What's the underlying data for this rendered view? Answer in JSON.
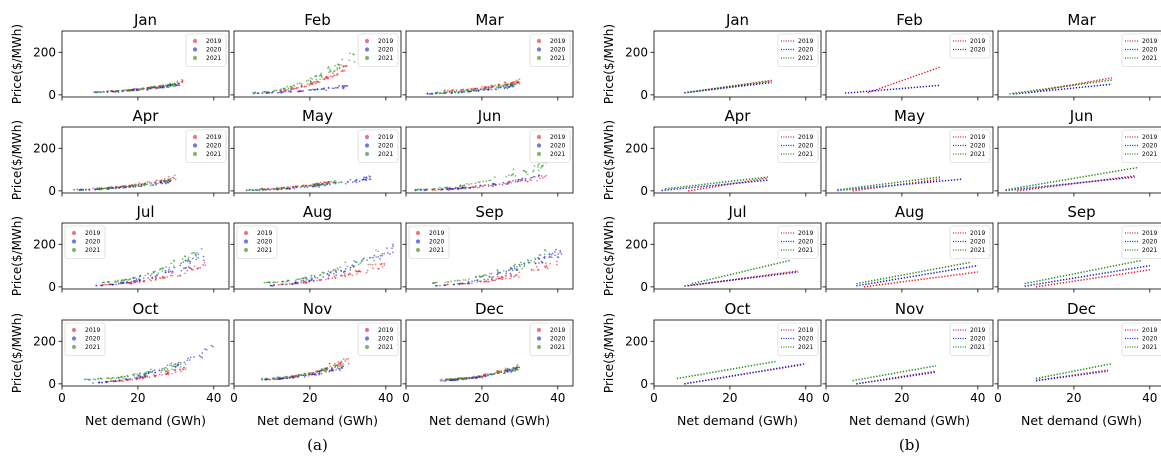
{
  "panels": [
    {
      "label": "(a)",
      "kind": "scatter"
    },
    {
      "label": "(b)",
      "kind": "line"
    }
  ],
  "axes": {
    "xlabel": "Net demand (GWh)",
    "ylabel": "Price($/MWh)",
    "xlim": [
      0,
      44
    ],
    "ylim": [
      -10,
      300
    ],
    "xticks": [
      0,
      20,
      40
    ],
    "yticks": [
      0,
      200
    ]
  },
  "legend": [
    "2019",
    "2020",
    "2021"
  ],
  "colors": {
    "2019": "#e8191f",
    "2020": "#1c1ccf",
    "2021": "#1d8a1d"
  },
  "months": [
    "Jan",
    "Feb",
    "Mar",
    "Apr",
    "May",
    "Jun",
    "Jul",
    "Aug",
    "Sep",
    "Oct",
    "Nov",
    "Dec"
  ],
  "chart_data": [
    {
      "type": "scatter",
      "panel": "(a)",
      "subplots": [
        {
          "month": "Jan",
          "series": [
            {
              "name": "2019",
              "x": [
                12,
                32
              ],
              "y": [
                18,
                75
              ]
            },
            {
              "name": "2020",
              "x": [
                8,
                31
              ],
              "y": [
                12,
                62
              ]
            },
            {
              "name": "2021",
              "x": [
                9,
                31
              ],
              "y": [
                14,
                70
              ]
            }
          ]
        },
        {
          "month": "Feb",
          "series": [
            {
              "name": "2019",
              "x": [
                12,
                30
              ],
              "y": [
                22,
                175
              ]
            },
            {
              "name": "2020",
              "x": [
                5,
                30
              ],
              "y": [
                8,
                55
              ]
            },
            {
              "name": "2021",
              "x": [
                5,
                32
              ],
              "y": [
                10,
                240
              ]
            }
          ]
        },
        {
          "month": "Mar",
          "series": [
            {
              "name": "2019",
              "x": [
                10,
                30
              ],
              "y": [
                20,
                80
              ]
            },
            {
              "name": "2020",
              "x": [
                5,
                29
              ],
              "y": [
                5,
                55
              ]
            },
            {
              "name": "2021",
              "x": [
                5,
                30
              ],
              "y": [
                8,
                75
              ]
            }
          ]
        },
        {
          "month": "Apr",
          "series": [
            {
              "name": "2019",
              "x": [
                8,
                30
              ],
              "y": [
                12,
                80
              ]
            },
            {
              "name": "2020",
              "x": [
                3,
                29
              ],
              "y": [
                4,
                60
              ]
            },
            {
              "name": "2021",
              "x": [
                3,
                29
              ],
              "y": [
                6,
                65
              ]
            }
          ]
        },
        {
          "month": "May",
          "series": [
            {
              "name": "2019",
              "x": [
                7,
                27
              ],
              "y": [
                10,
                60
              ]
            },
            {
              "name": "2020",
              "x": [
                3,
                36
              ],
              "y": [
                2,
                80
              ]
            },
            {
              "name": "2021",
              "x": [
                3,
                28
              ],
              "y": [
                4,
                60
              ]
            }
          ]
        },
        {
          "month": "Jun",
          "series": [
            {
              "name": "2019",
              "x": [
                5,
                37
              ],
              "y": [
                5,
                90
              ]
            },
            {
              "name": "2020",
              "x": [
                2,
                36
              ],
              "y": [
                2,
                90
              ]
            },
            {
              "name": "2021",
              "x": [
                2,
                37
              ],
              "y": [
                5,
                170
              ]
            }
          ]
        },
        {
          "month": "Jul",
          "series": [
            {
              "name": "2019",
              "x": [
                10,
                38
              ],
              "y": [
                10,
                130
              ]
            },
            {
              "name": "2020",
              "x": [
                8,
                38
              ],
              "y": [
                5,
                200
              ]
            },
            {
              "name": "2021",
              "x": [
                10,
                37
              ],
              "y": [
                20,
                230
              ]
            }
          ]
        },
        {
          "month": "Aug",
          "series": [
            {
              "name": "2019",
              "x": [
                10,
                40
              ],
              "y": [
                10,
                140
              ]
            },
            {
              "name": "2020",
              "x": [
                8,
                42
              ],
              "y": [
                5,
                240
              ]
            },
            {
              "name": "2021",
              "x": [
                8,
                38
              ],
              "y": [
                20,
                200
              ]
            }
          ]
        },
        {
          "month": "Sep",
          "series": [
            {
              "name": "2019",
              "x": [
                10,
                40
              ],
              "y": [
                10,
                150
              ]
            },
            {
              "name": "2020",
              "x": [
                7,
                41
              ],
              "y": [
                5,
                230
              ]
            },
            {
              "name": "2021",
              "x": [
                7,
                39
              ],
              "y": [
                20,
                220
              ]
            }
          ]
        },
        {
          "month": "Oct",
          "series": [
            {
              "name": "2019",
              "x": [
                10,
                33
              ],
              "y": [
                10,
                100
              ]
            },
            {
              "name": "2020",
              "x": [
                8,
                40
              ],
              "y": [
                5,
                230
              ]
            },
            {
              "name": "2021",
              "x": [
                6,
                32
              ],
              "y": [
                20,
                120
              ]
            }
          ]
        },
        {
          "month": "Nov",
          "series": [
            {
              "name": "2019",
              "x": [
                8,
                31
              ],
              "y": [
                20,
                150
              ]
            },
            {
              "name": "2020",
              "x": [
                7,
                29
              ],
              "y": [
                20,
                100
              ]
            },
            {
              "name": "2021",
              "x": [
                7,
                30
              ],
              "y": [
                25,
                120
              ]
            }
          ]
        },
        {
          "month": "Dec",
          "series": [
            {
              "name": "2019",
              "x": [
                10,
                30
              ],
              "y": [
                20,
                100
              ]
            },
            {
              "name": "2020",
              "x": [
                9,
                29
              ],
              "y": [
                15,
                90
              ]
            },
            {
              "name": "2021",
              "x": [
                9,
                30
              ],
              "y": [
                20,
                100
              ]
            }
          ]
        }
      ]
    },
    {
      "type": "line",
      "panel": "(b)",
      "subplots": [
        {
          "month": "Jan",
          "series": [
            {
              "name": "2019",
              "x": [
                8,
                31
              ],
              "y": [
                10,
                68
              ]
            },
            {
              "name": "2020",
              "x": [
                8,
                31
              ],
              "y": [
                10,
                58
              ]
            },
            {
              "name": "2021",
              "x": [
                9,
                31
              ],
              "y": [
                12,
                64
              ]
            }
          ]
        },
        {
          "month": "Feb",
          "series": [
            {
              "name": "2019",
              "x": [
                11,
                30
              ],
              "y": [
                10,
                130
              ]
            },
            {
              "name": "2020",
              "x": [
                5,
                30
              ],
              "y": [
                8,
                45
              ]
            }
          ]
        },
        {
          "month": "Mar",
          "series": [
            {
              "name": "2019",
              "x": [
                8,
                30
              ],
              "y": [
                10,
                80
              ]
            },
            {
              "name": "2020",
              "x": [
                4,
                30
              ],
              "y": [
                4,
                50
              ]
            },
            {
              "name": "2021",
              "x": [
                3,
                30
              ],
              "y": [
                5,
                70
              ]
            }
          ]
        },
        {
          "month": "Apr",
          "series": [
            {
              "name": "2019",
              "x": [
                9,
                30
              ],
              "y": [
                0,
                60
              ]
            },
            {
              "name": "2020",
              "x": [
                2,
                30
              ],
              "y": [
                2,
                50
              ]
            },
            {
              "name": "2021",
              "x": [
                3,
                30
              ],
              "y": [
                10,
                65
              ]
            }
          ]
        },
        {
          "month": "May",
          "series": [
            {
              "name": "2019",
              "x": [
                7,
                30
              ],
              "y": [
                0,
                55
              ]
            },
            {
              "name": "2020",
              "x": [
                3,
                36
              ],
              "y": [
                2,
                55
              ]
            },
            {
              "name": "2021",
              "x": [
                3,
                30
              ],
              "y": [
                5,
                65
              ]
            }
          ]
        },
        {
          "month": "Jun",
          "series": [
            {
              "name": "2019",
              "x": [
                5,
                36
              ],
              "y": [
                0,
                70
              ]
            },
            {
              "name": "2020",
              "x": [
                2,
                36
              ],
              "y": [
                2,
                65
              ]
            },
            {
              "name": "2021",
              "x": [
                2,
                37
              ],
              "y": [
                5,
                110
              ]
            }
          ]
        },
        {
          "month": "Jul",
          "series": [
            {
              "name": "2019",
              "x": [
                9,
                38
              ],
              "y": [
                5,
                75
              ]
            },
            {
              "name": "2020",
              "x": [
                8,
                38
              ],
              "y": [
                4,
                70
              ]
            },
            {
              "name": "2021",
              "x": [
                10,
                36
              ],
              "y": [
                15,
                125
              ]
            }
          ]
        },
        {
          "month": "Aug",
          "series": [
            {
              "name": "2019",
              "x": [
                10,
                40
              ],
              "y": [
                0,
                70
              ]
            },
            {
              "name": "2020",
              "x": [
                8,
                40
              ],
              "y": [
                5,
                100
              ]
            },
            {
              "name": "2021",
              "x": [
                8,
                38
              ],
              "y": [
                15,
                115
              ]
            }
          ]
        },
        {
          "month": "Sep",
          "series": [
            {
              "name": "2019",
              "x": [
                10,
                40
              ],
              "y": [
                0,
                80
              ]
            },
            {
              "name": "2020",
              "x": [
                7,
                40
              ],
              "y": [
                3,
                100
              ]
            },
            {
              "name": "2021",
              "x": [
                7,
                38
              ],
              "y": [
                15,
                125
              ]
            }
          ]
        },
        {
          "month": "Oct",
          "series": [
            {
              "name": "2019",
              "x": [
                8,
                39
              ],
              "y": [
                0,
                90
              ]
            },
            {
              "name": "2020",
              "x": [
                8,
                40
              ],
              "y": [
                0,
                95
              ]
            },
            {
              "name": "2021",
              "x": [
                6,
                32
              ],
              "y": [
                25,
                105
              ]
            }
          ]
        },
        {
          "month": "Nov",
          "series": [
            {
              "name": "2019",
              "x": [
                8,
                29
              ],
              "y": [
                0,
                60
              ]
            },
            {
              "name": "2020",
              "x": [
                8,
                29
              ],
              "y": [
                0,
                55
              ]
            },
            {
              "name": "2021",
              "x": [
                7,
                29
              ],
              "y": [
                15,
                85
              ]
            }
          ]
        },
        {
          "month": "Dec",
          "series": [
            {
              "name": "2019",
              "x": [
                10,
                29
              ],
              "y": [
                15,
                65
              ]
            },
            {
              "name": "2020",
              "x": [
                10,
                29
              ],
              "y": [
                15,
                60
              ]
            },
            {
              "name": "2021",
              "x": [
                10,
                30
              ],
              "y": [
                25,
                95
              ]
            }
          ]
        }
      ]
    }
  ]
}
